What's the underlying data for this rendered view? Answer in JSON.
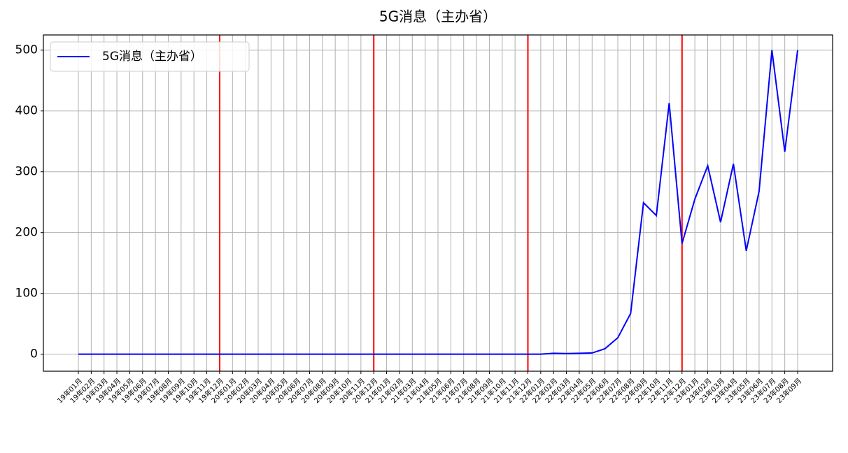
{
  "chart_data": {
    "type": "line",
    "title": "5G消息（主办省）",
    "categories": [
      "19年01月",
      "19年02月",
      "19年03月",
      "19年04月",
      "19年05月",
      "19年06月",
      "19年07月",
      "19年08月",
      "19年09月",
      "19年10月",
      "19年11月",
      "19年12月",
      "20年01月",
      "20年02月",
      "20年03月",
      "20年04月",
      "20年05月",
      "20年06月",
      "20年07月",
      "20年08月",
      "20年09月",
      "20年10月",
      "20年11月",
      "20年12月",
      "21年01月",
      "21年02月",
      "21年03月",
      "21年04月",
      "21年05月",
      "21年06月",
      "21年07月",
      "21年08月",
      "21年09月",
      "21年10月",
      "21年11月",
      "21年12月",
      "22年01月",
      "22年02月",
      "22年03月",
      "22年04月",
      "22年05月",
      "22年06月",
      "22年07月",
      "22年08月",
      "22年09月",
      "22年10月",
      "22年11月",
      "22年12月",
      "23年01月",
      "23年02月",
      "23年03月",
      "23年04月",
      "23年05月",
      "23年06月",
      "23年07月",
      "23年08月",
      "23年09月"
    ],
    "series": [
      {
        "name": "5G消息（主办省）",
        "color": "#0000ff",
        "values": [
          0,
          0,
          0,
          0,
          0,
          0,
          0,
          0,
          0,
          0,
          0,
          0,
          0,
          0,
          0,
          0,
          0,
          0,
          0,
          0,
          0,
          0,
          0,
          0,
          0,
          0,
          0,
          0,
          0,
          0,
          0,
          0,
          0,
          0,
          0,
          0,
          0,
          1.5,
          1,
          1.5,
          2,
          9,
          27,
          67,
          249,
          228,
          413,
          182,
          255,
          310,
          217,
          313,
          170,
          268,
          500,
          333,
          500
        ]
      }
    ],
    "red_lines": [
      11,
      23,
      35,
      47
    ],
    "red_line_color": "#ff0000",
    "ylim": [
      -28,
      525
    ],
    "yticks": [
      0,
      100,
      200,
      300,
      400,
      500
    ],
    "grid": true,
    "legend": "upper-left"
  }
}
